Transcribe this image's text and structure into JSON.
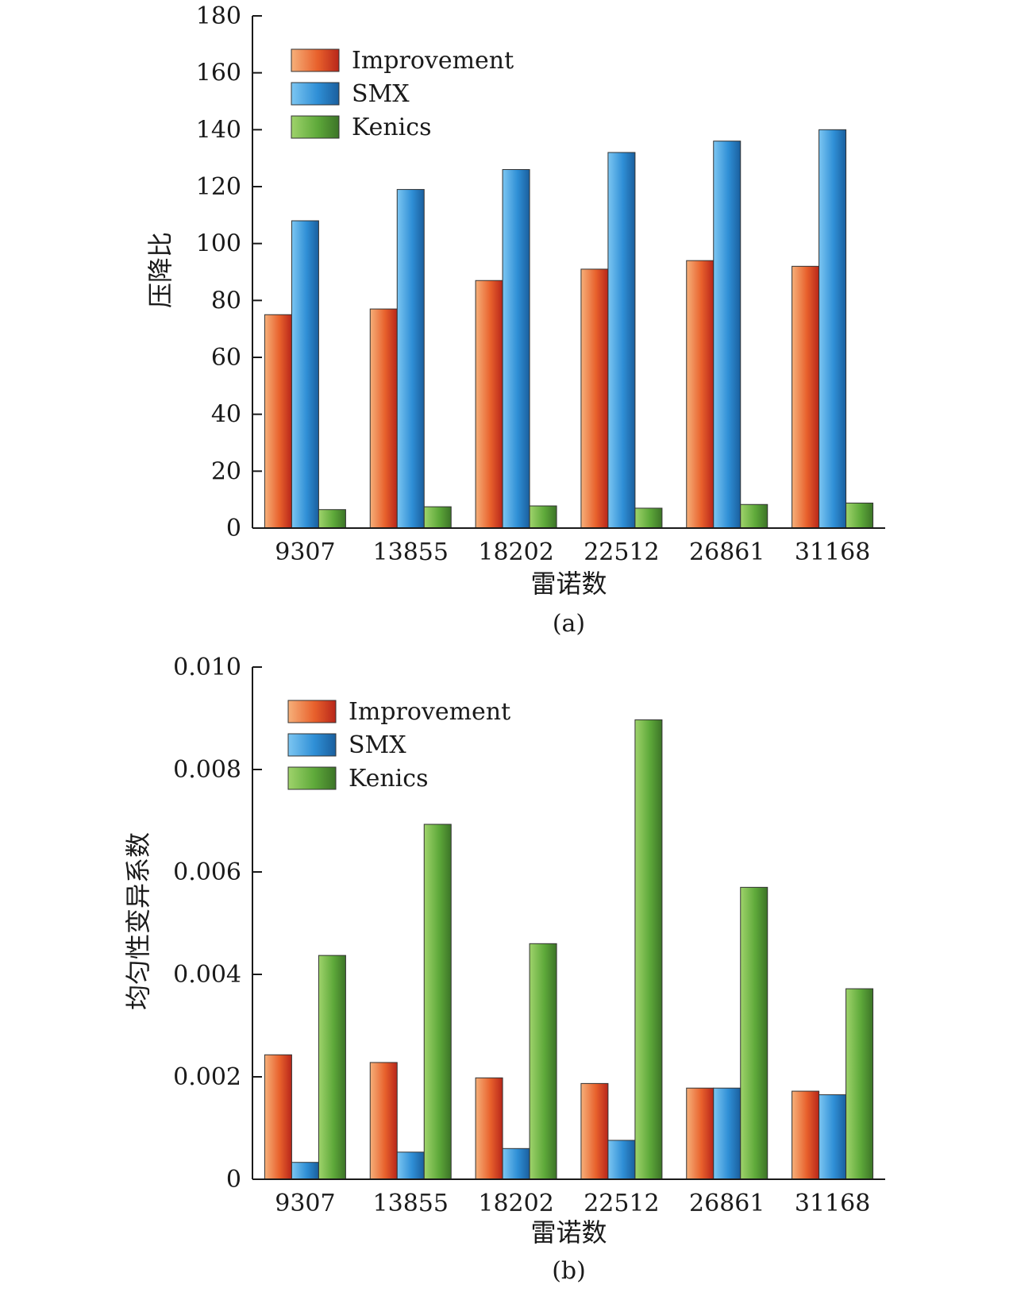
{
  "colors": {
    "improvement": "#e8612c",
    "smx": "#2f8fd6",
    "kenics": "#5ea93a",
    "axis": "#1a1a1a"
  },
  "chart_data": [
    {
      "type": "bar",
      "caption": "(a)",
      "xlabel": "雷诺数",
      "ylabel": "压降比",
      "categories": [
        "9307",
        "13855",
        "18202",
        "22512",
        "26861",
        "31168"
      ],
      "ylim": [
        0,
        180
      ],
      "yticks": [
        "0",
        "20",
        "40",
        "60",
        "80",
        "100",
        "120",
        "140",
        "160",
        "180"
      ],
      "legend_position": "top-left",
      "series": [
        {
          "name": "Improvement",
          "color_key": "improvement",
          "values": [
            75,
            77,
            87,
            91,
            94,
            92
          ]
        },
        {
          "name": "SMX",
          "color_key": "smx",
          "values": [
            108,
            119,
            126,
            132,
            136,
            140
          ]
        },
        {
          "name": "Kenics",
          "color_key": "kenics",
          "values": [
            6.5,
            7.5,
            7.8,
            7.0,
            8.3,
            8.8
          ]
        }
      ]
    },
    {
      "type": "bar",
      "caption": "(b)",
      "xlabel": "雷诺数",
      "ylabel": "均匀性变异系数",
      "categories": [
        "9307",
        "13855",
        "18202",
        "22512",
        "26861",
        "31168"
      ],
      "ylim": [
        0,
        0.01
      ],
      "yticks": [
        "0",
        "0.002",
        "0.004",
        "0.006",
        "0.008",
        "0.010"
      ],
      "legend_position": "top-left",
      "series": [
        {
          "name": "Improvement",
          "color_key": "improvement",
          "values": [
            0.00243,
            0.00228,
            0.00198,
            0.00187,
            0.00178,
            0.00172
          ]
        },
        {
          "name": "SMX",
          "color_key": "smx",
          "values": [
            0.00033,
            0.00053,
            0.0006,
            0.00076,
            0.00178,
            0.00165
          ]
        },
        {
          "name": "Kenics",
          "color_key": "kenics",
          "values": [
            0.00437,
            0.00693,
            0.0046,
            0.00897,
            0.0057,
            0.00372
          ]
        }
      ]
    }
  ]
}
